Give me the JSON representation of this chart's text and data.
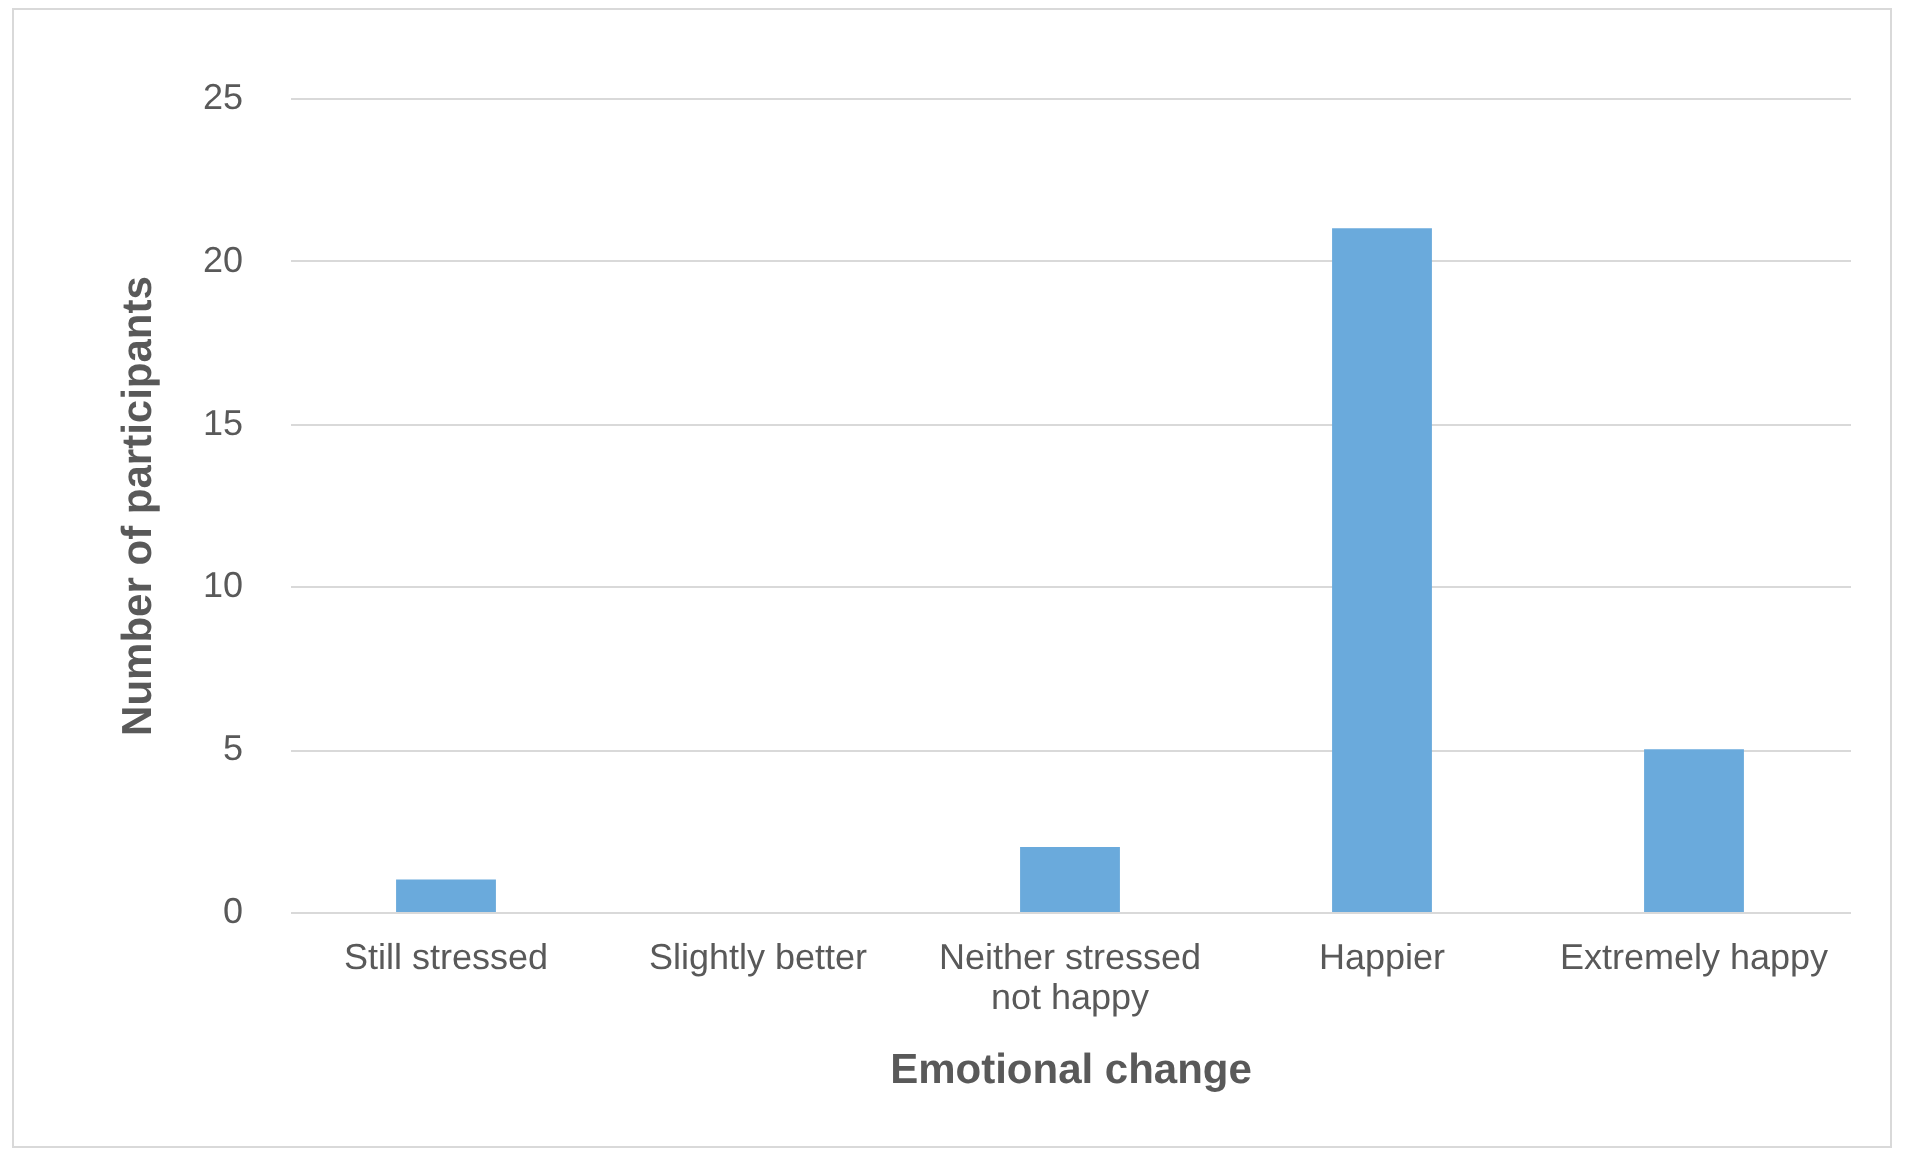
{
  "chart_data": {
    "type": "bar",
    "xlabel": "Emotional change",
    "ylabel": "Number of participants",
    "categories": [
      "Still stressed",
      "Slightly better",
      "Neither stressed not happy",
      "Happier",
      "Extremely happy"
    ],
    "values": [
      1,
      0,
      2,
      21,
      5
    ],
    "color": "#6aaadc",
    "ylim": [
      0,
      25
    ],
    "yticks": [
      0,
      5,
      10,
      15,
      20,
      25
    ],
    "grid": "y"
  }
}
